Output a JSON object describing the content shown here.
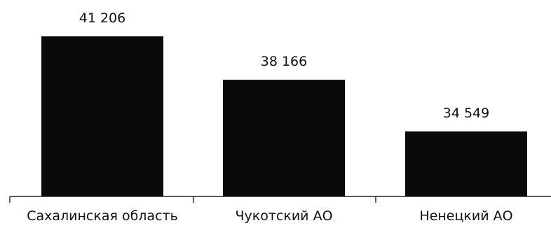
{
  "chart_data": {
    "type": "bar",
    "title": "",
    "xlabel": "",
    "ylabel": "",
    "categories": [
      "Сахалинская область",
      "Чукотский АО",
      "Ненецкий АО"
    ],
    "values": [
      41206,
      38166,
      34549
    ],
    "value_labels": [
      "41 206",
      "38 166",
      "34 549"
    ],
    "ylim": [
      30000,
      42500
    ],
    "grid": false,
    "legend": "none",
    "colors": {
      "bar": "#0a0a0a",
      "axis": "#222222"
    }
  }
}
